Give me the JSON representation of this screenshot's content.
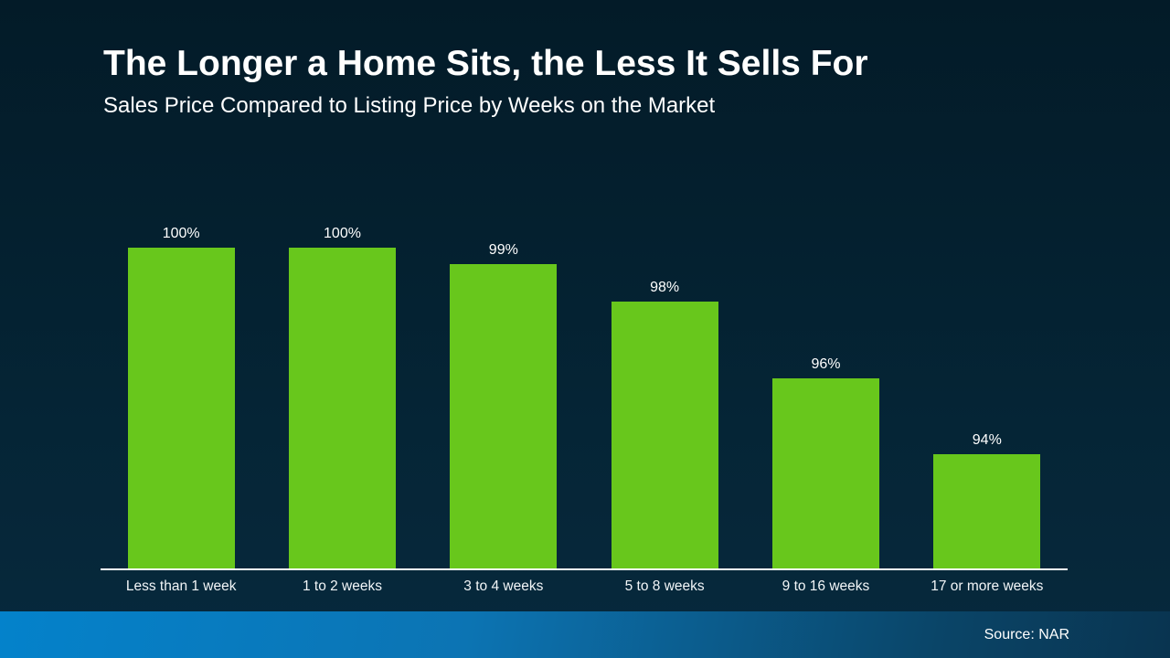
{
  "header": {
    "title": "The Longer a Home Sits, the Less It Sells For",
    "subtitle": "Sales Price Compared to Listing Price by Weeks on the Market"
  },
  "chart_data": {
    "type": "bar",
    "categories": [
      "Less than 1 week",
      "1 to 2 weeks",
      "3 to 4 weeks",
      "5 to 8 weeks",
      "9 to 16 weeks",
      "17 or more weeks"
    ],
    "values": [
      100,
      100,
      99,
      98,
      96,
      94
    ],
    "value_labels": [
      "100%",
      "100%",
      "99%",
      "98%",
      "96%",
      "94%"
    ],
    "title": "The Longer a Home Sits, the Less It Sells For",
    "subtitle": "Sales Price Compared to Listing Price by Weeks on the Market",
    "xlabel": "",
    "ylabel": "",
    "ylim": [
      91,
      100
    ],
    "grid": false,
    "legend": false,
    "bar_color": "#68c71c",
    "background": "dark-navy-gradient"
  },
  "footer": {
    "source": "Source: NAR"
  },
  "colors": {
    "background_top": "#031b28",
    "background_bottom": "#07293d",
    "bar_green": "#68c71c",
    "footer_gradient_left": "#0482cb",
    "footer_gradient_right": "#093450",
    "text": "#ffffff",
    "axis_line": "#fdfdfd"
  }
}
